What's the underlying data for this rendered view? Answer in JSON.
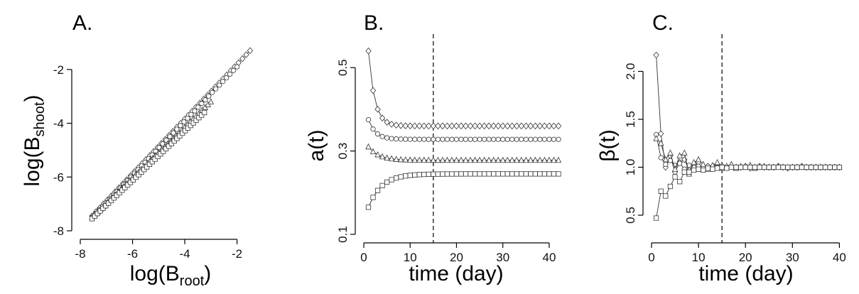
{
  "chart_data": [
    {
      "panel": "A.",
      "type": "scatter",
      "xlabel": {
        "main": "log(B",
        "sub": "root",
        "close": ")"
      },
      "ylabel": {
        "main": "log(B",
        "sub": "shoot",
        "close": ")"
      },
      "xlim": [
        -8,
        -1.2
      ],
      "ylim": [
        -8,
        -1
      ],
      "xticks": [
        -8,
        -6,
        -4,
        -2
      ],
      "yticks": [
        -8,
        -6,
        -4,
        -2
      ],
      "series": [
        {
          "marker": "diamond",
          "x_start": -7.55,
          "x_end": -1.5,
          "y_start": -7.45,
          "y_end": -1.3,
          "n": 42
        },
        {
          "marker": "circle",
          "x_start": -7.55,
          "x_end": -2.0,
          "y_start": -7.5,
          "y_end": -1.9,
          "n": 42
        },
        {
          "marker": "triangle",
          "x_start": -7.55,
          "x_end": -3.0,
          "y_start": -7.5,
          "y_end": -3.2,
          "n": 42
        },
        {
          "marker": "square",
          "x_start": -7.55,
          "x_end": -3.25,
          "y_start": -7.55,
          "y_end": -3.6,
          "n": 42
        }
      ]
    },
    {
      "panel": "B.",
      "type": "line",
      "xlabel": "time (day)",
      "ylabel": "a(t)",
      "xlim": [
        0,
        42
      ],
      "ylim": [
        0.1,
        0.56
      ],
      "xticks": [
        0,
        10,
        20,
        30,
        40
      ],
      "yticks": [
        0.1,
        0.3,
        0.5
      ],
      "vline_x": 15,
      "series": [
        {
          "marker": "diamond",
          "start": 0.54,
          "end": 0.36,
          "rate": 0.75
        },
        {
          "marker": "circle",
          "start": 0.375,
          "end": 0.328,
          "rate": 0.65
        },
        {
          "marker": "triangle",
          "start": 0.31,
          "end": 0.278,
          "rate": 0.45
        },
        {
          "marker": "square",
          "start": 0.165,
          "end": 0.245,
          "rate": 0.35
        }
      ]
    },
    {
      "panel": "C.",
      "type": "line",
      "xlabel": "time (day)",
      "ylabel": "β(t)",
      "xlim": [
        0,
        41
      ],
      "ylim": [
        0.3,
        2.3
      ],
      "xticks": [
        0,
        10,
        20,
        30,
        40
      ],
      "yticks": [
        0.5,
        1.0,
        1.5,
        2.0
      ],
      "vline_x": 15,
      "series": [
        {
          "marker": "diamond",
          "values": [
            2.17,
            1.35,
            1.0,
            1.12,
            0.95,
            1.05,
            1.08,
            0.97,
            1.02,
            1.05,
            0.98,
            1.01,
            1.0,
            1.02,
            0.99,
            1.0,
            1.01,
            1.0,
            1.0,
            1.01,
            0.99,
            1.0,
            1.01,
            1.0,
            1.0,
            1.0,
            1.01,
            1.0,
            0.99,
            1.0,
            1.0,
            1.01,
            1.0,
            1.0,
            1.0,
            1.0,
            1.0,
            1.0,
            1.0,
            1.0
          ]
        },
        {
          "marker": "circle",
          "values": [
            1.34,
            1.1,
            1.03,
            1.07,
            1.02,
            1.04,
            0.98,
            1.02,
            1.0,
            1.01,
            0.99,
            1.01,
            1.0,
            1.0,
            1.01,
            1.0,
            1.0,
            1.0,
            1.0,
            1.0,
            1.0,
            1.0,
            1.0,
            1.0,
            1.0,
            1.0,
            1.0,
            1.0,
            1.0,
            1.0,
            1.0,
            1.0,
            1.0,
            1.0,
            1.0,
            1.0,
            1.0,
            1.0,
            1.0,
            1.0
          ]
        },
        {
          "marker": "triangle",
          "values": [
            1.3,
            1.25,
            1.08,
            1.15,
            0.98,
            1.12,
            1.15,
            0.93,
            1.05,
            1.08,
            1.03,
            0.98,
            1.02,
            1.05,
            0.99,
            1.01,
            1.03,
            0.99,
            1.01,
            1.0,
            1.02,
            0.99,
            1.0,
            1.01,
            1.0,
            1.0,
            1.01,
            1.0,
            1.0,
            1.0,
            1.0,
            1.0,
            1.0,
            1.0,
            1.0,
            1.0,
            1.0,
            1.0,
            1.0,
            1.0
          ]
        },
        {
          "marker": "square",
          "values": [
            0.47,
            0.75,
            0.7,
            0.8,
            0.9,
            0.85,
            0.95,
            0.95,
            0.97,
            0.98,
            0.97,
            0.99,
            0.98,
            0.99,
            1.0,
            0.99,
            1.0,
            1.0,
            1.0,
            1.0,
            1.0,
            1.0,
            1.0,
            1.0,
            1.0,
            1.0,
            1.0,
            1.0,
            1.0,
            1.0,
            1.0,
            1.0,
            1.0,
            1.0,
            1.0,
            1.0,
            1.0,
            1.0,
            1.0,
            1.0
          ]
        }
      ]
    }
  ]
}
